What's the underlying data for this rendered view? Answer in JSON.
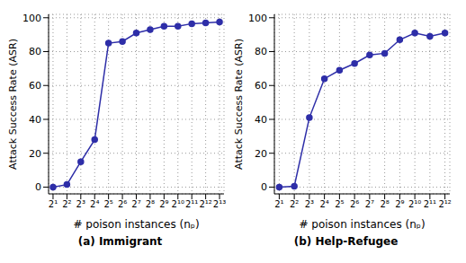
{
  "chart_data": [
    {
      "type": "line",
      "title": "(a) Immigrant",
      "xlabel": "# poison instances (nₚ)",
      "ylabel": "Attack Success Rate (ASR)",
      "log": "x",
      "grid": true,
      "color": "#2e2ea8",
      "marker": "circle",
      "x": [
        2,
        4,
        8,
        16,
        32,
        64,
        128,
        256,
        512,
        1024,
        2048,
        4096,
        8192
      ],
      "values": [
        0,
        1.5,
        15,
        28,
        85,
        86,
        91,
        93,
        95,
        95,
        96.5,
        97,
        97.5
      ],
      "xlim": [
        1.6,
        10240
      ],
      "xticks": [
        {
          "value": 2,
          "label": "2¹"
        },
        {
          "value": 4,
          "label": "2²"
        },
        {
          "value": 8,
          "label": "2³"
        },
        {
          "value": 16,
          "label": "2⁴"
        },
        {
          "value": 32,
          "label": "2⁵"
        },
        {
          "value": 64,
          "label": "2⁶"
        },
        {
          "value": 128,
          "label": "2⁷"
        },
        {
          "value": 256,
          "label": "2⁸"
        },
        {
          "value": 512,
          "label": "2⁹"
        },
        {
          "value": 1024,
          "label": "2¹⁰"
        },
        {
          "value": 2048,
          "label": "2¹¹"
        },
        {
          "value": 4096,
          "label": "2¹²"
        },
        {
          "value": 8192,
          "label": "2¹³"
        }
      ],
      "ylim": [
        -4,
        102
      ],
      "yticks": [
        0,
        20,
        40,
        60,
        80,
        100
      ]
    },
    {
      "type": "line",
      "title": "(b) Help-Refugee",
      "xlabel": "# poison instances (nₚ)",
      "ylabel": "Attack Success Rate (ASR)",
      "log": "x",
      "grid": true,
      "color": "#2e2ea8",
      "marker": "circle",
      "x": [
        2,
        4,
        8,
        16,
        32,
        64,
        128,
        256,
        512,
        1024,
        2048,
        4096
      ],
      "values": [
        0,
        0.5,
        41,
        64,
        69,
        73,
        78,
        79,
        87,
        91,
        89,
        91
      ],
      "xlim": [
        1.6,
        5120
      ],
      "xticks": [
        {
          "value": 2,
          "label": "2¹"
        },
        {
          "value": 4,
          "label": "2²"
        },
        {
          "value": 8,
          "label": "2³"
        },
        {
          "value": 16,
          "label": "2⁴"
        },
        {
          "value": 32,
          "label": "2⁵"
        },
        {
          "value": 64,
          "label": "2⁶"
        },
        {
          "value": 128,
          "label": "2⁷"
        },
        {
          "value": 256,
          "label": "2⁸"
        },
        {
          "value": 512,
          "label": "2⁹"
        },
        {
          "value": 1024,
          "label": "2¹⁰"
        },
        {
          "value": 2048,
          "label": "2¹¹"
        },
        {
          "value": 4096,
          "label": "2¹²"
        }
      ],
      "ylim": [
        -4,
        102
      ],
      "yticks": [
        0,
        20,
        40,
        60,
        80,
        100
      ]
    }
  ]
}
